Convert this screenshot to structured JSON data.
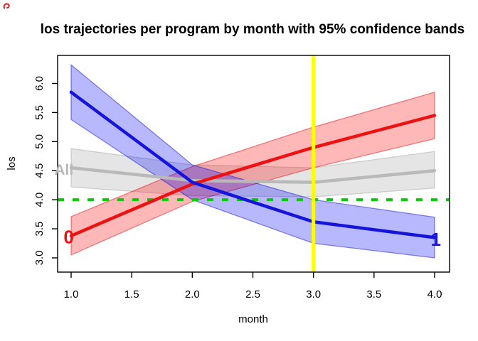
{
  "figure": {
    "title": "los trajectories per program by month with 95% confidence bands",
    "background": "#ffffff"
  },
  "chart_data": {
    "type": "line",
    "title": "los trajectories per program by month with 95% confidence bands",
    "xlabel": "month",
    "ylabel": "los",
    "x": [
      1,
      2,
      3,
      4
    ],
    "xlim": [
      0.88,
      4.12
    ],
    "ylim": [
      2.78,
      6.46
    ],
    "x_ticks": [
      1.0,
      1.5,
      2.0,
      2.5,
      3.0,
      3.5,
      4.0
    ],
    "x_tick_labels": [
      "1.0",
      "1.5",
      "2.0",
      "2.5",
      "3.0",
      "3.5",
      "4.0"
    ],
    "y_ticks": [
      3.0,
      3.5,
      4.0,
      4.5,
      5.0,
      5.5,
      6.0
    ],
    "y_tick_labels": [
      "3.0",
      "3.5",
      "4.0",
      "4.5",
      "5.0",
      "5.5",
      "6.0"
    ],
    "grid": false,
    "legend": "inline-labels",
    "series": [
      {
        "name": "All",
        "label": "All",
        "color": "#b9b9b9",
        "band_fill": "rgba(150,150,150,0.25)",
        "band_edge": "rgba(150,150,150,0.40)",
        "x": [
          1,
          2,
          3,
          4
        ],
        "values": [
          4.55,
          4.33,
          4.3,
          4.5
        ],
        "band_lower": [
          4.22,
          4.07,
          4.05,
          4.2
        ],
        "band_upper": [
          4.88,
          4.6,
          4.55,
          4.83
        ],
        "label_at": {
          "x": 0.94,
          "y": 4.52
        },
        "label_size": 21,
        "z": 0
      },
      {
        "name": "0",
        "label": "0",
        "color": "#ee1111",
        "band_fill": "rgba(255,0,0,0.28)",
        "band_edge": "rgba(220,0,0,0.45)",
        "x": [
          1,
          2,
          3,
          4
        ],
        "values": [
          3.38,
          4.27,
          4.9,
          5.45
        ],
        "band_lower": [
          3.05,
          3.97,
          4.55,
          5.05
        ],
        "band_upper": [
          3.71,
          4.57,
          5.25,
          5.85
        ],
        "label_at": {
          "x": 0.98,
          "y": 3.36
        },
        "label_size": 26,
        "z": 1
      },
      {
        "name": "1",
        "label": "1",
        "color": "#1414dd",
        "band_fill": "rgba(0,0,255,0.28)",
        "band_edge": "rgba(0,0,220,0.45)",
        "x": [
          1,
          2,
          3,
          4
        ],
        "values": [
          5.85,
          4.3,
          3.62,
          3.35
        ],
        "band_lower": [
          5.38,
          4.0,
          3.25,
          3.0
        ],
        "band_upper": [
          6.32,
          4.6,
          4.0,
          3.7
        ],
        "label_at": {
          "x": 4.01,
          "y": 3.32
        },
        "label_size": 26,
        "z": 2
      }
    ],
    "reference_lines": [
      {
        "orientation": "horizontal",
        "value": 4.0,
        "color": "#00cc00",
        "style": "dashed",
        "width": 4
      },
      {
        "orientation": "vertical",
        "value": 3.0,
        "color": "#ffff00",
        "style": "solid",
        "width": 5
      }
    ]
  },
  "annotations": {
    "corner_mark_color": "#dd2222"
  }
}
